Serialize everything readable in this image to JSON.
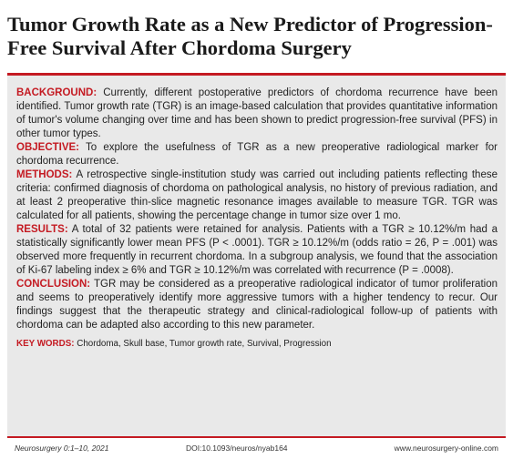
{
  "title": "Tumor Growth Rate as a New Predictor of Progression-Free Survival After Chordoma Surgery",
  "abstract": {
    "background_label": "BACKGROUND:",
    "background_text": " Currently, different postoperative predictors of chordoma recurrence have been identified. Tumor growth rate (TGR) is an image-based calculation that provides quantitative information of tumor's volume changing over time and has been shown to predict progression-free survival (PFS) in other tumor types.",
    "objective_label": "OBJECTIVE:",
    "objective_text": " To explore the usefulness of TGR as a new preoperative radiological marker for chordoma recurrence.",
    "methods_label": "METHODS:",
    "methods_text": " A retrospective single-institution study was carried out including patients reflecting these criteria: confirmed diagnosis of chordoma on pathological analysis, no history of previous radiation, and at least 2 preoperative thin-slice magnetic resonance images available to measure TGR. TGR was calculated for all patients, showing the percentage change in tumor size over 1 mo.",
    "results_label": "RESULTS:",
    "results_text": " A total of 32 patients were retained for analysis. Patients with a TGR ≥ 10.12%/m had a statistically significantly lower mean PFS (P < .0001). TGR ≥ 10.12%/m (odds ratio = 26, P = .001) was observed more frequently in recurrent chordoma. In a subgroup analysis, we found that the association of Ki-67 labeling index ≥ 6% and TGR ≥ 10.12%/m was correlated with recurrence (P = .0008).",
    "conclusion_label": "CONCLUSION:",
    "conclusion_text": " TGR may be considered as a preoperative radiological indicator of tumor proliferation and seems to preoperatively identify more aggressive tumors with a higher tendency to recur. Our findings suggest that the therapeutic strategy and clinical-radiological follow-up of patients with chordoma can be adapted also according to this new parameter.",
    "keywords_label": "KEY WORDS:",
    "keywords_text": " Chordoma, Skull base, Tumor growth rate, Survival, Progression"
  },
  "footer": {
    "citation": "Neurosurgery 0:1–10, 2021",
    "doi": "DOI:10.1093/neuros/nyab164",
    "url": "www.neurosurgery-online.com"
  },
  "colors": {
    "accent": "#c41a22",
    "panel": "#e9e9e9"
  }
}
